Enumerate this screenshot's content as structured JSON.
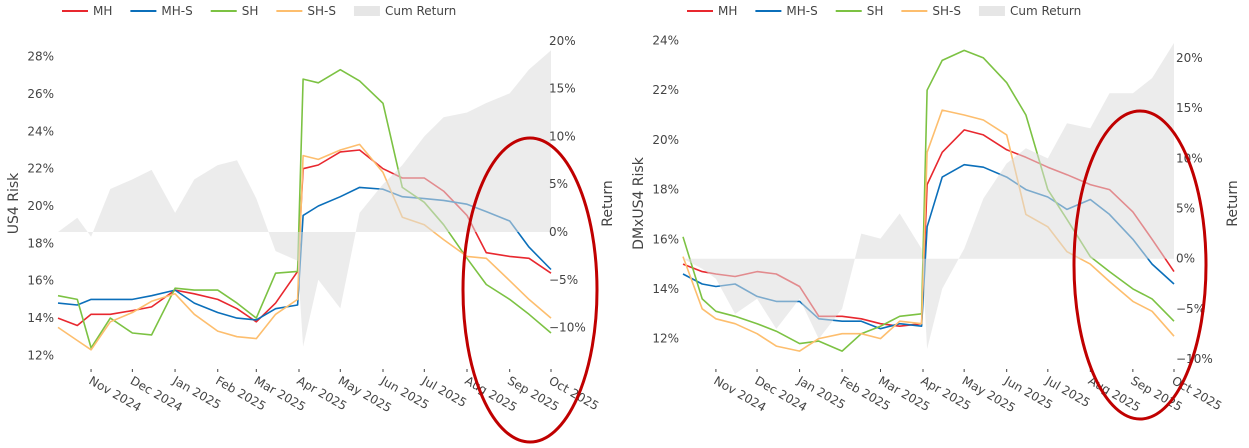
{
  "colors": {
    "MH": "#e8282f",
    "MH-S": "#0b6fba",
    "SH": "#7cc243",
    "SH-S": "#fdbe6e",
    "Cum Return": "#e6e6e6",
    "highlight": "#c00000"
  },
  "chart_data": [
    {
      "type": "line",
      "title": "",
      "legend": [
        "MH",
        "MH-S",
        "SH",
        "SH-S",
        "Cum Return"
      ],
      "legend_position": "top-left",
      "ylabel": "US4 Risk",
      "y2label": "Return",
      "yticks": [
        "12%",
        "14%",
        "16%",
        "18%",
        "20%",
        "22%",
        "24%",
        "26%",
        "28%"
      ],
      "ytick_values": [
        12,
        14,
        16,
        18,
        20,
        22,
        24,
        26,
        28
      ],
      "y2ticks": [
        "−10%",
        "−5%",
        "0%",
        "5%",
        "10%",
        "15%",
        "20%"
      ],
      "y2tick_values": [
        -10,
        -5,
        0,
        5,
        10,
        15,
        20
      ],
      "ylim": [
        11.7,
        29.0
      ],
      "y2lim": [
        -13.5,
        20.3
      ],
      "xlim": [
        "2024-10-08",
        "2025-10-01"
      ],
      "xticks": [
        "Nov 2024",
        "Dec 2024",
        "Jan 2025",
        "Feb 2025",
        "Mar 2025",
        "Apr 2025",
        "May 2025",
        "Jun 2025",
        "Jul 2025",
        "Aug 2025",
        "Sep 2025",
        "Oct 2025"
      ],
      "xtick_dates": [
        "2024-11-01",
        "2024-12-01",
        "2025-01-01",
        "2025-02-01",
        "2025-03-01",
        "2025-04-01",
        "2025-05-01",
        "2025-06-01",
        "2025-07-01",
        "2025-08-01",
        "2025-09-01",
        "2025-10-01"
      ],
      "x": [
        "2024-10-08",
        "2024-10-22",
        "2024-11-01",
        "2024-11-15",
        "2024-12-01",
        "2024-12-15",
        "2025-01-01",
        "2025-01-15",
        "2025-02-01",
        "2025-02-15",
        "2025-03-01",
        "2025-03-15",
        "2025-03-31",
        "2025-04-04",
        "2025-04-15",
        "2025-05-01",
        "2025-05-15",
        "2025-06-01",
        "2025-06-15",
        "2025-07-01",
        "2025-07-15",
        "2025-08-01",
        "2025-08-15",
        "2025-09-01",
        "2025-09-15",
        "2025-10-01"
      ],
      "series": [
        {
          "name": "MH",
          "axis": "left",
          "values": [
            14.0,
            13.6,
            14.2,
            14.2,
            14.4,
            14.6,
            15.5,
            15.3,
            15.0,
            14.5,
            13.8,
            14.8,
            16.5,
            22.0,
            22.2,
            22.9,
            23.0,
            22.0,
            21.5,
            21.5,
            20.8,
            19.5,
            17.5,
            17.3,
            17.2,
            16.4
          ]
        },
        {
          "name": "MH-S",
          "axis": "left",
          "values": [
            14.8,
            14.7,
            15.0,
            15.0,
            15.0,
            15.2,
            15.5,
            14.8,
            14.3,
            14.0,
            13.9,
            14.5,
            14.7,
            19.5,
            20.0,
            20.5,
            21.0,
            20.9,
            20.5,
            20.4,
            20.3,
            20.1,
            19.7,
            19.2,
            17.8,
            16.6
          ]
        },
        {
          "name": "SH",
          "axis": "left",
          "values": [
            15.2,
            15.0,
            12.4,
            14.0,
            13.2,
            13.1,
            15.6,
            15.5,
            15.5,
            14.8,
            14.0,
            16.4,
            16.5,
            26.8,
            26.6,
            27.3,
            26.7,
            25.5,
            21.0,
            20.2,
            19.0,
            17.2,
            15.8,
            15.0,
            14.2,
            13.2
          ]
        },
        {
          "name": "SH-S",
          "axis": "left",
          "values": [
            13.5,
            12.8,
            12.3,
            13.8,
            14.3,
            14.9,
            15.3,
            14.2,
            13.3,
            13.0,
            12.9,
            14.2,
            15.0,
            22.7,
            22.5,
            23.0,
            23.3,
            21.8,
            19.4,
            19.0,
            18.2,
            17.3,
            17.2,
            16.0,
            15.0,
            14.0
          ]
        },
        {
          "name": "Cum Return",
          "axis": "right",
          "type": "area",
          "values": [
            0,
            1.5,
            -0.5,
            4.5,
            5.5,
            6.5,
            2.0,
            5.5,
            7.0,
            7.5,
            3.5,
            -2.0,
            -3.0,
            -12.0,
            -5.0,
            -8.0,
            2.0,
            5.0,
            7.0,
            10.0,
            12.0,
            12.5,
            13.5,
            14.5,
            17.0,
            19.0
          ]
        }
      ],
      "annotation": "highlight-ellipse"
    },
    {
      "type": "line",
      "title": "",
      "legend": [
        "MH",
        "MH-S",
        "SH",
        "SH-S",
        "Cum Return"
      ],
      "legend_position": "top-left",
      "ylabel": "DMxUS4 Risk",
      "y2label": "Return",
      "yticks": [
        "12%",
        "14%",
        "16%",
        "18%",
        "20%",
        "22%",
        "24%"
      ],
      "ytick_values": [
        12,
        14,
        16,
        18,
        20,
        22,
        24
      ],
      "y2ticks": [
        "−10%",
        "−5%",
        "0%",
        "5%",
        "10%",
        "15%",
        "20%"
      ],
      "y2tick_values": [
        -10,
        -5,
        0,
        5,
        10,
        15,
        20
      ],
      "ylim": [
        11.1,
        24.1
      ],
      "y2lim": [
        -10.2,
        22.0
      ],
      "xlim": [
        "2024-10-08",
        "2025-10-01"
      ],
      "xticks": [
        "Nov 2024",
        "Dec 2024",
        "Jan 2025",
        "Feb 2025",
        "Mar 2025",
        "Apr 2025",
        "May 2025",
        "Jun 2025",
        "Jul 2025",
        "Aug 2025",
        "Sep 2025",
        "Oct 2025"
      ],
      "xtick_dates": [
        "2024-11-01",
        "2024-12-01",
        "2025-01-01",
        "2025-02-01",
        "2025-03-01",
        "2025-04-01",
        "2025-05-01",
        "2025-06-01",
        "2025-07-01",
        "2025-08-01",
        "2025-09-01",
        "2025-10-01"
      ],
      "x": [
        "2024-10-08",
        "2024-10-22",
        "2024-11-01",
        "2024-11-15",
        "2024-12-01",
        "2024-12-15",
        "2025-01-01",
        "2025-01-15",
        "2025-02-01",
        "2025-02-15",
        "2025-03-01",
        "2025-03-15",
        "2025-03-31",
        "2025-04-04",
        "2025-04-15",
        "2025-05-01",
        "2025-05-15",
        "2025-06-01",
        "2025-06-15",
        "2025-07-01",
        "2025-07-15",
        "2025-08-01",
        "2025-08-15",
        "2025-09-01",
        "2025-09-15",
        "2025-10-01"
      ],
      "series": [
        {
          "name": "MH",
          "axis": "left",
          "values": [
            15.0,
            14.7,
            14.6,
            14.5,
            14.7,
            14.6,
            14.1,
            12.9,
            12.9,
            12.8,
            12.6,
            12.5,
            12.6,
            18.2,
            19.5,
            20.4,
            20.2,
            19.6,
            19.3,
            18.9,
            18.6,
            18.2,
            18.0,
            17.1,
            16.0,
            14.7
          ]
        },
        {
          "name": "MH-S",
          "axis": "left",
          "values": [
            14.6,
            14.2,
            14.1,
            14.2,
            13.7,
            13.5,
            13.5,
            12.8,
            12.7,
            12.7,
            12.4,
            12.6,
            12.5,
            16.5,
            18.5,
            19.0,
            18.9,
            18.5,
            18.0,
            17.7,
            17.2,
            17.6,
            17.0,
            16.0,
            15.0,
            14.2
          ]
        },
        {
          "name": "SH",
          "axis": "left",
          "values": [
            16.1,
            13.6,
            13.1,
            12.9,
            12.6,
            12.3,
            11.8,
            11.9,
            11.5,
            12.2,
            12.5,
            12.9,
            13.0,
            22.0,
            23.2,
            23.6,
            23.3,
            22.3,
            21.0,
            18.0,
            16.8,
            15.3,
            14.7,
            14.0,
            13.6,
            12.7
          ]
        },
        {
          "name": "SH-S",
          "axis": "left",
          "values": [
            15.3,
            13.2,
            12.8,
            12.6,
            12.2,
            11.7,
            11.5,
            12.0,
            12.2,
            12.2,
            12.0,
            12.7,
            12.6,
            19.5,
            21.2,
            21.0,
            20.8,
            20.2,
            17.0,
            16.5,
            15.5,
            15.0,
            14.3,
            13.5,
            13.1,
            12.1
          ]
        },
        {
          "name": "Cum Return",
          "axis": "right",
          "type": "area",
          "values": [
            0,
            -1,
            -2,
            -5.5,
            -4,
            -7,
            -4,
            -8,
            -5,
            2.5,
            2.0,
            4.5,
            1.0,
            -9,
            -3,
            1.0,
            6.0,
            9.5,
            11,
            10,
            13.5,
            13,
            16.5,
            16.5,
            18.0,
            21.5
          ]
        }
      ],
      "annotation": "highlight-ellipse"
    }
  ]
}
